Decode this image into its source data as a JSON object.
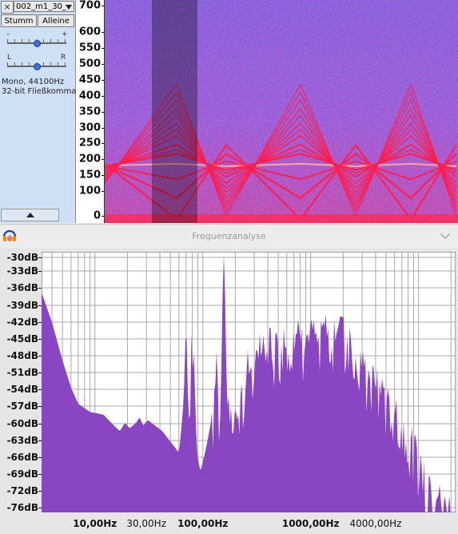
{
  "track": {
    "close_glyph": "×",
    "name": "002_m1_30_",
    "mute_label": "Stumm",
    "solo_label": "Alleine",
    "gain_minus": "–",
    "gain_plus": "+",
    "pan_left": "L",
    "pan_right": "R",
    "gain_value": 0.5,
    "pan_value": 0.5,
    "format_line1": "Mono, 44100Hz",
    "format_line2": "32-bit Fließkomma"
  },
  "ruler": {
    "labels": [
      "700",
      "600",
      "550",
      "500",
      "450",
      "400",
      "350",
      "300",
      "250",
      "200",
      "150",
      "100",
      "0"
    ]
  },
  "dialog": {
    "title": "Frequenzanalyse",
    "icon": "audacity-headphones-icon"
  },
  "frequency_plot": {
    "db_labels": [
      "-30dB",
      "-33dB",
      "-36dB",
      "-39dB",
      "-42dB",
      "-45dB",
      "-48dB",
      "-51dB",
      "-54dB",
      "-57dB",
      "-60dB",
      "-63dB",
      "-66dB",
      "-69dB",
      "-72dB",
      "-76dB"
    ],
    "hz_labels": [
      "10,00Hz",
      "30,00Hz",
      "100,00Hz",
      "1000,00Hz",
      "4000,00Hz"
    ],
    "fill_color": "#8a45c2",
    "grid_color": "#a8a8a8"
  }
}
